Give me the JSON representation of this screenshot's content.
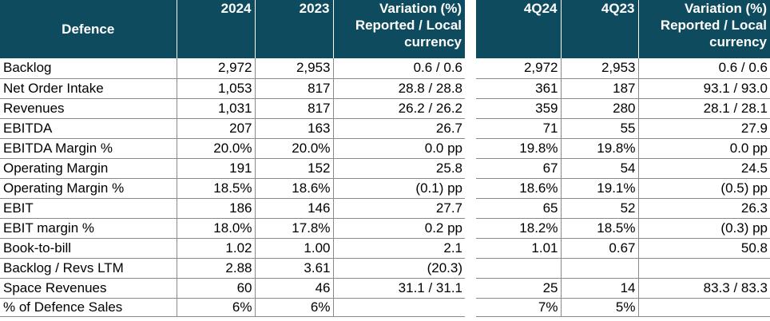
{
  "left_table": {
    "headers": {
      "label": "Defence",
      "col1": "2024",
      "col2": "2023",
      "col3": [
        "Variation (%)",
        "Reported / Local",
        "currency"
      ]
    },
    "rows": [
      {
        "label": "Backlog",
        "v1": "2,972",
        "v2": "2,953",
        "v3": "0.6 / 0.6"
      },
      {
        "label": "Net Order Intake",
        "v1": "1,053",
        "v2": "817",
        "v3": "28.8 / 28.8"
      },
      {
        "label": "Revenues",
        "v1": "1,031",
        "v2": "817",
        "v3": "26.2 / 26.2"
      },
      {
        "label": "EBITDA",
        "v1": "207",
        "v2": "163",
        "v3": "26.7"
      },
      {
        "label": "EBITDA Margin %",
        "v1": "20.0%",
        "v2": "20.0%",
        "v3": "0.0 pp"
      },
      {
        "label": "Operating Margin",
        "v1": "191",
        "v2": "152",
        "v3": "25.8"
      },
      {
        "label": "Operating Margin %",
        "v1": "18.5%",
        "v2": "18.6%",
        "v3": "(0.1) pp"
      },
      {
        "label": "EBIT",
        "v1": "186",
        "v2": "146",
        "v3": "27.7"
      },
      {
        "label": "EBIT margin %",
        "v1": "18.0%",
        "v2": "17.8%",
        "v3": "0.2 pp"
      },
      {
        "label": "Book-to-bill",
        "v1": "1.02",
        "v2": "1.00",
        "v3": "2.1"
      },
      {
        "label": "Backlog / Revs LTM",
        "v1": "2.88",
        "v2": "3.61",
        "v3": "(20.3)"
      },
      {
        "label": "Space Revenues",
        "v1": "60",
        "v2": "46",
        "v3": "31.1 / 31.1"
      },
      {
        "label": "% of Defence Sales",
        "v1": "6%",
        "v2": "6%",
        "v3": ""
      }
    ]
  },
  "right_table": {
    "headers": {
      "col1": "4Q24",
      "col2": "4Q23",
      "col3": [
        "Variation (%)",
        "Reported / Local",
        "currency"
      ]
    },
    "rows": [
      {
        "v1": "2,972",
        "v2": "2,953",
        "v3": "0.6 / 0.6"
      },
      {
        "v1": "361",
        "v2": "187",
        "v3": "93.1 / 93.0"
      },
      {
        "v1": "359",
        "v2": "280",
        "v3": "28.1 / 28.1"
      },
      {
        "v1": "71",
        "v2": "55",
        "v3": "27.9"
      },
      {
        "v1": "19.8%",
        "v2": "19.8%",
        "v3": "0.0 pp"
      },
      {
        "v1": "67",
        "v2": "54",
        "v3": "24.5"
      },
      {
        "v1": "18.6%",
        "v2": "19.1%",
        "v3": "(0.5) pp"
      },
      {
        "v1": "65",
        "v2": "52",
        "v3": "26.3"
      },
      {
        "v1": "18.2%",
        "v2": "18.5%",
        "v3": "(0.3) pp"
      },
      {
        "v1": "1.01",
        "v2": "0.67",
        "v3": "50.8"
      },
      {
        "v1": "",
        "v2": "",
        "v3": ""
      },
      {
        "v1": "25",
        "v2": "14",
        "v3": "83.3 / 83.3"
      },
      {
        "v1": "7%",
        "v2": "5%",
        "v3": ""
      }
    ]
  },
  "colors": {
    "header_bg": "#0f4b5e",
    "header_text": "#ffffff",
    "grid_line": "#8a8a8a"
  }
}
